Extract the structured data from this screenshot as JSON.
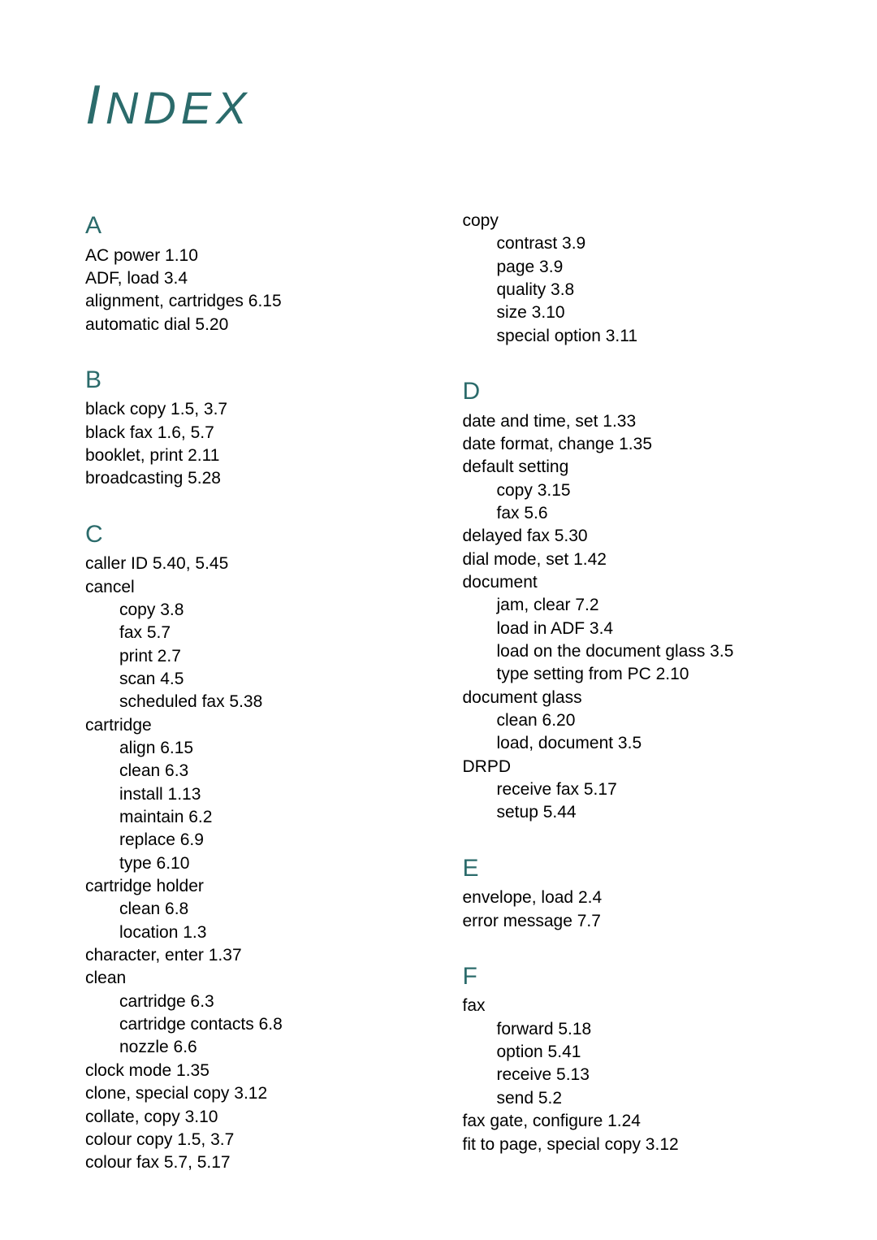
{
  "title_first": "I",
  "title_rest": "NDEX",
  "colors": {
    "heading": "#2b6b6b",
    "text": "#000000",
    "background": "#ffffff"
  },
  "typography": {
    "body_fontsize": 21,
    "letter_fontsize": 30,
    "title_fontsize": 56
  },
  "left": {
    "A": {
      "letter": "A",
      "lines": [
        "AC power 1.10",
        "ADF, load 3.4",
        "alignment, cartridges 6.15",
        "automatic dial 5.20"
      ]
    },
    "B": {
      "letter": "B",
      "lines": [
        "black copy 1.5, 3.7",
        "black fax 1.6, 5.7",
        "booklet, print 2.11",
        "broadcasting 5.28"
      ]
    },
    "C": {
      "letter": "C",
      "lines": [
        {
          "t": "caller ID 5.40, 5.45"
        },
        {
          "t": "cancel"
        },
        {
          "t": "copy 3.8",
          "sub": true
        },
        {
          "t": "fax 5.7",
          "sub": true
        },
        {
          "t": "print 2.7",
          "sub": true
        },
        {
          "t": "scan 4.5",
          "sub": true
        },
        {
          "t": "scheduled fax 5.38",
          "sub": true
        },
        {
          "t": "cartridge"
        },
        {
          "t": "align 6.15",
          "sub": true
        },
        {
          "t": "clean 6.3",
          "sub": true
        },
        {
          "t": "install 1.13",
          "sub": true
        },
        {
          "t": "maintain 6.2",
          "sub": true
        },
        {
          "t": "replace 6.9",
          "sub": true
        },
        {
          "t": "type 6.10",
          "sub": true
        },
        {
          "t": "cartridge holder"
        },
        {
          "t": "clean 6.8",
          "sub": true
        },
        {
          "t": "location 1.3",
          "sub": true
        },
        {
          "t": "character, enter 1.37"
        },
        {
          "t": "clean"
        },
        {
          "t": "cartridge 6.3",
          "sub": true
        },
        {
          "t": "cartridge contacts 6.8",
          "sub": true
        },
        {
          "t": "nozzle 6.6",
          "sub": true
        },
        {
          "t": "clock mode 1.35"
        },
        {
          "t": "clone, special copy 3.12"
        },
        {
          "t": "collate, copy 3.10"
        },
        {
          "t": "colour copy 1.5, 3.7"
        },
        {
          "t": "colour fax 5.7, 5.17"
        }
      ]
    }
  },
  "right": {
    "copy": {
      "lines": [
        {
          "t": "copy"
        },
        {
          "t": "contrast 3.9",
          "sub": true
        },
        {
          "t": "page 3.9",
          "sub": true
        },
        {
          "t": "quality 3.8",
          "sub": true
        },
        {
          "t": "size 3.10",
          "sub": true
        },
        {
          "t": "special option 3.11",
          "sub": true
        }
      ]
    },
    "D": {
      "letter": "D",
      "lines": [
        {
          "t": "date and time, set 1.33"
        },
        {
          "t": "date format, change 1.35"
        },
        {
          "t": "default setting"
        },
        {
          "t": "copy 3.15",
          "sub": true
        },
        {
          "t": "fax 5.6",
          "sub": true
        },
        {
          "t": "delayed fax 5.30"
        },
        {
          "t": "dial mode, set 1.42"
        },
        {
          "t": "document"
        },
        {
          "t": "jam, clear 7.2",
          "sub": true
        },
        {
          "t": "load in ADF 3.4",
          "sub": true
        },
        {
          "t": "load on the document glass 3.5",
          "sub": true
        },
        {
          "t": "type setting from PC 2.10",
          "sub": true
        },
        {
          "t": "document glass"
        },
        {
          "t": "clean 6.20",
          "sub": true
        },
        {
          "t": "load, document 3.5",
          "sub": true
        },
        {
          "t": "DRPD"
        },
        {
          "t": "receive fax 5.17",
          "sub": true
        },
        {
          "t": "setup 5.44",
          "sub": true
        }
      ]
    },
    "E": {
      "letter": "E",
      "lines": [
        {
          "t": "envelope, load 2.4"
        },
        {
          "t": "error message 7.7"
        }
      ]
    },
    "F": {
      "letter": "F",
      "lines": [
        {
          "t": "fax"
        },
        {
          "t": "forward 5.18",
          "sub": true
        },
        {
          "t": "option 5.41",
          "sub": true
        },
        {
          "t": "receive 5.13",
          "sub": true
        },
        {
          "t": "send 5.2",
          "sub": true
        },
        {
          "t": "fax gate, configure 1.24"
        },
        {
          "t": "fit to page, special copy 3.12"
        }
      ]
    }
  }
}
